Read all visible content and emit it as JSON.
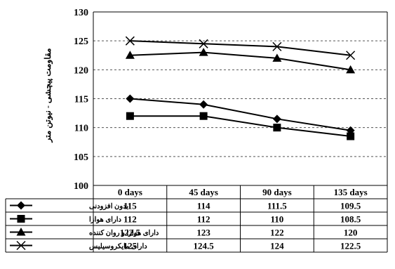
{
  "chart_data": {
    "type": "line",
    "ylabel": "مقاومت پیچشی - نیوتن متر",
    "ylim": [
      100,
      130
    ],
    "yticks": [
      100,
      105,
      110,
      115,
      120,
      125,
      130
    ],
    "grid": "horizontal dashed",
    "categories": [
      "0 days",
      "45 days",
      "90 days",
      "135 days"
    ],
    "series": [
      {
        "name": "بدون افزودنی",
        "marker": "diamond",
        "values": [
          115,
          114,
          111.5,
          109.5
        ]
      },
      {
        "name": "دارای هوازا",
        "marker": "square",
        "values": [
          112,
          112,
          110,
          108.5
        ]
      },
      {
        "name": "دارای هوازا و روان کننده",
        "marker": "triangle",
        "values": [
          122.5,
          123,
          122,
          120
        ]
      },
      {
        "name": "دارای مایکروسیلیس",
        "marker": "x",
        "values": [
          125,
          124.5,
          124,
          122.5
        ]
      }
    ],
    "data_table": true,
    "line_color": "#000000"
  }
}
